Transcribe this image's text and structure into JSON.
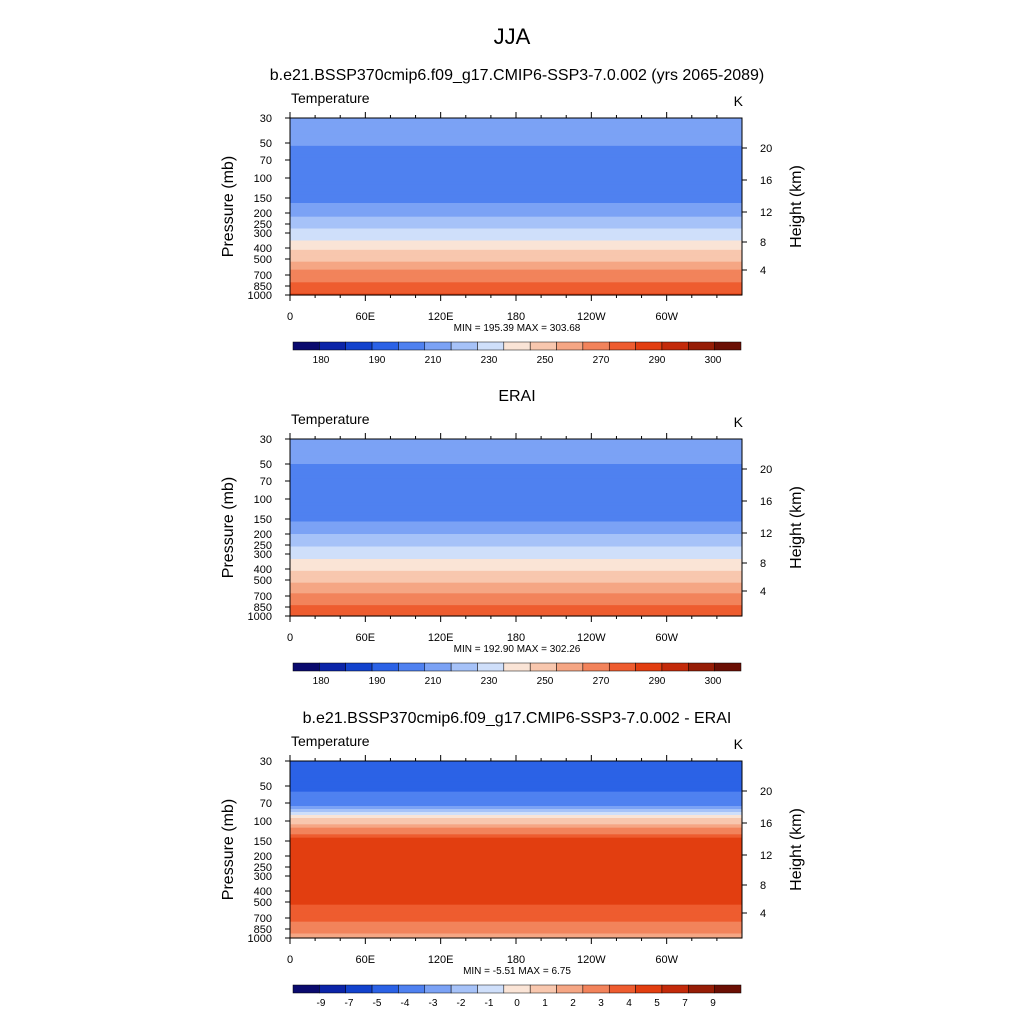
{
  "page": {
    "title": "JJA"
  },
  "chart_data": [
    {
      "type": "heatmap",
      "title": "b.e21.BSSP370cmip6.f09_g17.CMIP6-SSP3-7.0.002 (yrs 2065-2089)",
      "variable": "Temperature",
      "units": "K",
      "ylabel": "Pressure (mb)",
      "ylabel_right": "Height (km)",
      "x_ticks": [
        "0",
        "60E",
        "120E",
        "180",
        "120W",
        "60W"
      ],
      "x_range_deg": [
        0,
        360
      ],
      "y_ticks": [
        "30",
        "50",
        "70",
        "100",
        "150",
        "200",
        "250",
        "300",
        "400",
        "500",
        "700",
        "850",
        "1000"
      ],
      "y_ticks_right": [
        "20",
        "16",
        "12",
        "8",
        "4"
      ],
      "stats": "MIN = 195.39  MAX = 303.68",
      "min": 195.39,
      "max": 303.68,
      "levels": [
        30,
        50,
        70,
        100,
        150,
        200,
        250,
        300,
        400,
        500,
        700,
        850,
        1000
      ],
      "level_values": [
        218,
        211,
        205,
        201,
        207,
        216,
        226,
        234,
        248,
        258,
        274,
        284,
        291
      ],
      "colorbar_labels": [
        "180",
        "190",
        "210",
        "230",
        "250",
        "270",
        "290",
        "300"
      ],
      "colorbar_bounds": [
        175,
        180,
        185,
        190,
        200,
        210,
        220,
        230,
        240,
        250,
        260,
        270,
        280,
        290,
        295,
        300,
        305
      ]
    },
    {
      "type": "heatmap",
      "title": "ERAI",
      "variable": "Temperature",
      "units": "K",
      "ylabel": "Pressure (mb)",
      "ylabel_right": "Height (km)",
      "x_ticks": [
        "0",
        "60E",
        "120E",
        "180",
        "120W",
        "60W"
      ],
      "x_range_deg": [
        0,
        360
      ],
      "y_ticks": [
        "30",
        "50",
        "70",
        "100",
        "150",
        "200",
        "250",
        "300",
        "400",
        "500",
        "700",
        "850",
        "1000"
      ],
      "y_ticks_right": [
        "20",
        "16",
        "12",
        "8",
        "4"
      ],
      "stats": "MIN = 192.90  MAX = 302.26",
      "min": 192.9,
      "max": 302.26,
      "levels": [
        30,
        50,
        70,
        100,
        150,
        200,
        250,
        300,
        400,
        500,
        700,
        850,
        1000
      ],
      "level_values": [
        216,
        210,
        205,
        201,
        209,
        220,
        228,
        236,
        249,
        258,
        272,
        282,
        288
      ],
      "colorbar_labels": [
        "180",
        "190",
        "210",
        "230",
        "250",
        "270",
        "290",
        "300"
      ],
      "colorbar_bounds": [
        175,
        180,
        185,
        190,
        200,
        210,
        220,
        230,
        240,
        250,
        260,
        270,
        280,
        290,
        295,
        300,
        305
      ]
    },
    {
      "type": "heatmap",
      "title": "b.e21.BSSP370cmip6.f09_g17.CMIP6-SSP3-7.0.002 - ERAI",
      "variable": "Temperature",
      "units": "K",
      "ylabel": "Pressure (mb)",
      "ylabel_right": "Height (km)",
      "x_ticks": [
        "0",
        "60E",
        "120E",
        "180",
        "120W",
        "60W"
      ],
      "x_range_deg": [
        0,
        360
      ],
      "y_ticks": [
        "30",
        "50",
        "70",
        "100",
        "150",
        "200",
        "250",
        "300",
        "400",
        "500",
        "700",
        "850",
        "1000"
      ],
      "y_ticks_right": [
        "20",
        "16",
        "12",
        "8",
        "4"
      ],
      "stats": "MIN =  -5.51  MAX =   6.75",
      "min": -5.51,
      "max": 6.75,
      "levels": [
        30,
        50,
        70,
        100,
        150,
        200,
        250,
        300,
        400,
        500,
        700,
        850,
        1000
      ],
      "level_values": [
        -4.5,
        -4.2,
        -3.6,
        1.5,
        5.5,
        5.6,
        5.5,
        5.4,
        5.3,
        5.1,
        4.4,
        3.4,
        2.6
      ],
      "colorbar_labels": [
        "-9",
        "-7",
        "-5",
        "-4",
        "-3",
        "-2",
        "-1",
        "0",
        "1",
        "2",
        "3",
        "4",
        "5",
        "7",
        "9"
      ],
      "colorbar_bounds": [
        -11,
        -9,
        -7,
        -5,
        -4,
        -3,
        -2,
        -1,
        0,
        1,
        2,
        3,
        4,
        5,
        7,
        9,
        11
      ]
    }
  ],
  "colormap": [
    "#0a0a6e",
    "#0b24a8",
    "#1242cd",
    "#2b62e6",
    "#4f81f0",
    "#7ba2f5",
    "#a6c2f8",
    "#cfdffa",
    "#fae4d6",
    "#f8c7ae",
    "#f5a684",
    "#f2835b",
    "#ee5c2f",
    "#e23e10",
    "#c32a0a",
    "#961d06",
    "#6b0f04"
  ]
}
